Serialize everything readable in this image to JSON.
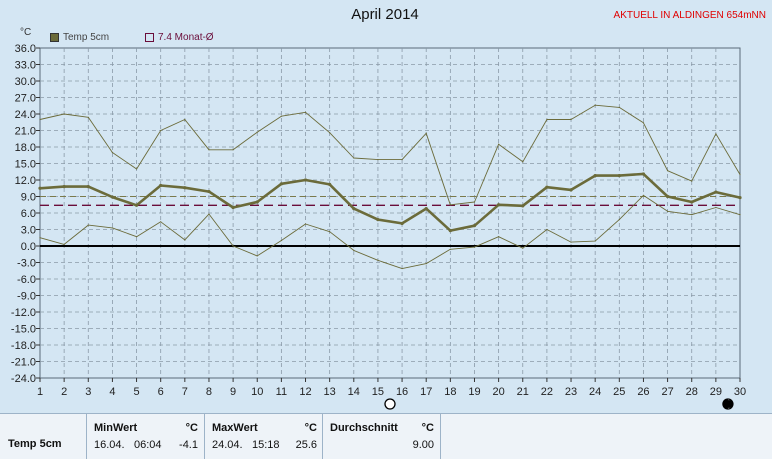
{
  "page": {
    "title": "April 2014",
    "badge": "AKTUELL IN ALDINGEN 654mNN",
    "unit_label": "°C"
  },
  "legend": {
    "series1": "Temp 5cm",
    "series2": "7.4 Monat-Ø"
  },
  "colors": {
    "background": "#d4e6f3",
    "series_main": "#6b6b3a",
    "series_minmax": "#6b6b3a",
    "monthly_avg": "#6a0d3a",
    "avg_line": "#7a7a4a",
    "badge": "#e00000"
  },
  "chart_data": {
    "type": "line",
    "title": "April 2014",
    "ylabel": "°C",
    "ylim": [
      -24,
      36
    ],
    "ystep": 3,
    "x": [
      1,
      2,
      3,
      4,
      5,
      6,
      7,
      8,
      9,
      10,
      11,
      12,
      13,
      14,
      15,
      16,
      17,
      18,
      19,
      20,
      21,
      22,
      23,
      24,
      25,
      26,
      27,
      28,
      29,
      30
    ],
    "grid": true,
    "zero_line": true,
    "series": [
      {
        "name": "Temp 5cm",
        "role": "mean",
        "values": [
          10.5,
          10.8,
          10.8,
          8.9,
          7.4,
          11.0,
          10.6,
          9.9,
          7.0,
          8.0,
          11.3,
          12.0,
          11.2,
          6.8,
          4.8,
          4.1,
          6.8,
          2.8,
          3.7,
          7.5,
          7.3,
          10.7,
          10.2,
          12.8,
          12.8,
          13.1,
          9.0,
          8.0,
          9.8,
          8.8
        ]
      },
      {
        "role": "max",
        "values": [
          23.0,
          24.0,
          23.4,
          17.0,
          14.0,
          21.0,
          23.0,
          17.5,
          17.5,
          20.7,
          23.6,
          24.3,
          20.6,
          16.0,
          15.7,
          15.7,
          20.5,
          7.5,
          8.0,
          18.5,
          15.3,
          23.0,
          23.0,
          25.6,
          25.2,
          22.4,
          13.7,
          11.8,
          20.4,
          13.0
        ]
      },
      {
        "role": "min",
        "values": [
          1.5,
          0.3,
          3.8,
          3.3,
          1.7,
          4.4,
          1.1,
          5.8,
          0.0,
          -1.8,
          1.0,
          4.0,
          2.6,
          -0.8,
          -2.6,
          -4.1,
          -3.2,
          -0.6,
          -0.2,
          1.7,
          -0.4,
          3.0,
          0.7,
          0.9,
          4.8,
          9.2,
          6.3,
          5.7,
          7.0,
          5.7
        ]
      }
    ],
    "reference_lines": [
      {
        "name": "7.4 Monat-Ø",
        "value": 7.4
      },
      {
        "role": "period-mean",
        "value": 9.0
      }
    ],
    "markers": [
      {
        "x": 15.5,
        "type": "full-moon-icon"
      },
      {
        "x": 29.5,
        "type": "new-moon-icon"
      }
    ]
  },
  "table": {
    "row_label": "Temp 5cm",
    "min": {
      "header": "MinWert",
      "unit": "°C",
      "date": "16.04.",
      "time": "06:04",
      "value": "-4.1"
    },
    "max": {
      "header": "MaxWert",
      "unit": "°C",
      "date": "24.04.",
      "time": "15:18",
      "value": "25.6"
    },
    "avg": {
      "header": "Durchschnitt",
      "unit": "°C",
      "value": "9.00"
    }
  }
}
